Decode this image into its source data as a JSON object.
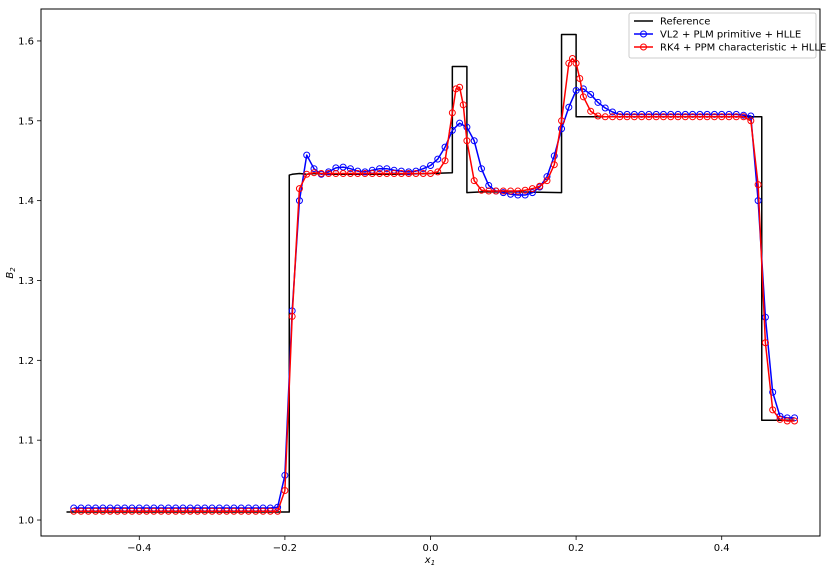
{
  "chart_data": {
    "type": "line",
    "title": "",
    "xlabel": "x",
    "xlabel_sub": "1",
    "ylabel": "B",
    "ylabel_sub": "2",
    "xlim": [
      -0.535,
      0.535
    ],
    "ylim": [
      0.98,
      1.64
    ],
    "xticks": [
      -0.4,
      -0.2,
      0.0,
      0.2,
      0.4
    ],
    "xtick_labels": [
      "−0.4",
      "−0.2",
      "0.0",
      "0.2",
      "0.4"
    ],
    "yticks": [
      1.0,
      1.1,
      1.2,
      1.3,
      1.4,
      1.5,
      1.6
    ],
    "ytick_labels": [
      "1.0",
      "1.1",
      "1.2",
      "1.3",
      "1.4",
      "1.5",
      "1.6"
    ],
    "grid": false,
    "legend_position": "top-right",
    "series": [
      {
        "name": "Reference",
        "color": "#000000",
        "marker": "none",
        "x": [
          -0.5,
          -0.194,
          -0.194,
          -0.19,
          -0.18,
          -0.17,
          -0.16,
          -0.14,
          -0.1,
          -0.05,
          0.0,
          0.03,
          0.03,
          0.05,
          0.05,
          0.07,
          0.12,
          0.18,
          0.18,
          0.2,
          0.2,
          0.3,
          0.445,
          0.455,
          0.455,
          0.5
        ],
        "y": [
          1.01,
          1.01,
          1.432,
          1.433,
          1.434,
          1.433,
          1.434,
          1.433,
          1.433,
          1.433,
          1.434,
          1.435,
          1.568,
          1.568,
          1.41,
          1.411,
          1.411,
          1.41,
          1.608,
          1.608,
          1.505,
          1.505,
          1.505,
          1.505,
          1.125,
          1.125
        ]
      },
      {
        "name": "VL2 + PLM primitive + HLLE",
        "color": "#0000ff",
        "marker": "circle",
        "x": [
          -0.49,
          -0.48,
          -0.47,
          -0.46,
          -0.45,
          -0.44,
          -0.43,
          -0.42,
          -0.41,
          -0.4,
          -0.39,
          -0.38,
          -0.37,
          -0.36,
          -0.35,
          -0.34,
          -0.33,
          -0.32,
          -0.31,
          -0.3,
          -0.29,
          -0.28,
          -0.27,
          -0.26,
          -0.25,
          -0.24,
          -0.23,
          -0.22,
          -0.21,
          -0.2,
          -0.19,
          -0.18,
          -0.17,
          -0.16,
          -0.15,
          -0.14,
          -0.13,
          -0.12,
          -0.11,
          -0.1,
          -0.09,
          -0.08,
          -0.07,
          -0.06,
          -0.05,
          -0.04,
          -0.03,
          -0.02,
          -0.01,
          0.0,
          0.01,
          0.02,
          0.03,
          0.04,
          0.05,
          0.06,
          0.07,
          0.08,
          0.09,
          0.1,
          0.11,
          0.12,
          0.13,
          0.14,
          0.15,
          0.16,
          0.17,
          0.18,
          0.19,
          0.2,
          0.21,
          0.22,
          0.23,
          0.24,
          0.25,
          0.26,
          0.27,
          0.28,
          0.29,
          0.3,
          0.31,
          0.32,
          0.33,
          0.34,
          0.35,
          0.36,
          0.37,
          0.38,
          0.39,
          0.4,
          0.41,
          0.42,
          0.43,
          0.44,
          0.45,
          0.46,
          0.47,
          0.48,
          0.49,
          0.5
        ],
        "y": [
          1.015,
          1.015,
          1.015,
          1.015,
          1.015,
          1.015,
          1.015,
          1.015,
          1.015,
          1.015,
          1.015,
          1.015,
          1.015,
          1.015,
          1.015,
          1.015,
          1.015,
          1.015,
          1.015,
          1.015,
          1.015,
          1.015,
          1.015,
          1.015,
          1.015,
          1.015,
          1.015,
          1.015,
          1.016,
          1.056,
          1.262,
          1.4,
          1.457,
          1.44,
          1.433,
          1.436,
          1.441,
          1.442,
          1.44,
          1.437,
          1.436,
          1.438,
          1.44,
          1.44,
          1.438,
          1.437,
          1.436,
          1.437,
          1.44,
          1.444,
          1.452,
          1.467,
          1.488,
          1.497,
          1.492,
          1.475,
          1.44,
          1.419,
          1.412,
          1.41,
          1.408,
          1.407,
          1.407,
          1.41,
          1.417,
          1.43,
          1.456,
          1.49,
          1.517,
          1.538,
          1.54,
          1.533,
          1.523,
          1.516,
          1.511,
          1.508,
          1.508,
          1.508,
          1.508,
          1.508,
          1.508,
          1.508,
          1.508,
          1.508,
          1.508,
          1.508,
          1.508,
          1.508,
          1.508,
          1.508,
          1.508,
          1.508,
          1.507,
          1.506,
          1.4,
          1.254,
          1.16,
          1.13,
          1.128,
          1.128
        ]
      },
      {
        "name": "RK4 + PPM characteristic + HLLE",
        "color": "#ff0000",
        "marker": "circle",
        "x": [
          -0.49,
          -0.48,
          -0.47,
          -0.46,
          -0.45,
          -0.44,
          -0.43,
          -0.42,
          -0.41,
          -0.4,
          -0.39,
          -0.38,
          -0.37,
          -0.36,
          -0.35,
          -0.34,
          -0.33,
          -0.32,
          -0.31,
          -0.3,
          -0.29,
          -0.28,
          -0.27,
          -0.26,
          -0.25,
          -0.24,
          -0.23,
          -0.22,
          -0.21,
          -0.2,
          -0.19,
          -0.18,
          -0.17,
          -0.16,
          -0.15,
          -0.14,
          -0.13,
          -0.12,
          -0.11,
          -0.1,
          -0.09,
          -0.08,
          -0.07,
          -0.06,
          -0.05,
          -0.04,
          -0.03,
          -0.02,
          -0.01,
          0.0,
          0.01,
          0.02,
          0.03,
          0.035,
          0.04,
          0.045,
          0.05,
          0.06,
          0.07,
          0.08,
          0.09,
          0.1,
          0.11,
          0.12,
          0.13,
          0.14,
          0.15,
          0.16,
          0.17,
          0.18,
          0.19,
          0.195,
          0.2,
          0.205,
          0.21,
          0.22,
          0.23,
          0.24,
          0.25,
          0.26,
          0.27,
          0.28,
          0.29,
          0.3,
          0.31,
          0.32,
          0.33,
          0.34,
          0.35,
          0.36,
          0.37,
          0.38,
          0.39,
          0.4,
          0.41,
          0.42,
          0.43,
          0.44,
          0.45,
          0.46,
          0.47,
          0.48,
          0.49,
          0.5
        ],
        "y": [
          1.011,
          1.011,
          1.011,
          1.011,
          1.011,
          1.011,
          1.011,
          1.011,
          1.011,
          1.011,
          1.011,
          1.011,
          1.011,
          1.011,
          1.011,
          1.011,
          1.011,
          1.011,
          1.011,
          1.011,
          1.011,
          1.011,
          1.011,
          1.011,
          1.011,
          1.011,
          1.011,
          1.011,
          1.011,
          1.037,
          1.255,
          1.415,
          1.433,
          1.435,
          1.434,
          1.434,
          1.434,
          1.434,
          1.434,
          1.434,
          1.434,
          1.434,
          1.434,
          1.434,
          1.434,
          1.434,
          1.434,
          1.434,
          1.434,
          1.434,
          1.436,
          1.45,
          1.51,
          1.54,
          1.542,
          1.52,
          1.475,
          1.425,
          1.413,
          1.412,
          1.412,
          1.412,
          1.412,
          1.412,
          1.413,
          1.415,
          1.418,
          1.425,
          1.445,
          1.5,
          1.572,
          1.578,
          1.572,
          1.553,
          1.53,
          1.512,
          1.506,
          1.505,
          1.505,
          1.505,
          1.505,
          1.505,
          1.505,
          1.505,
          1.505,
          1.505,
          1.505,
          1.505,
          1.505,
          1.505,
          1.505,
          1.505,
          1.505,
          1.505,
          1.505,
          1.505,
          1.505,
          1.5,
          1.42,
          1.222,
          1.138,
          1.126,
          1.124,
          1.124
        ]
      }
    ]
  }
}
